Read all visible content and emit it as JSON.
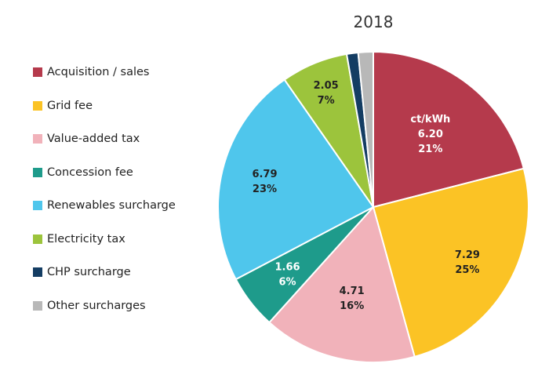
{
  "chart_data": {
    "type": "pie",
    "title": "2018",
    "unit_label": "ct/kWh",
    "legend_position": "left",
    "slices": [
      {
        "name": "Acquisition / sales",
        "value": "6.20",
        "percent": "21%",
        "color": "#b53a4c"
      },
      {
        "name": "Grid fee",
        "value": "7.29",
        "percent": "25%",
        "color": "#fbc325"
      },
      {
        "name": "Value-added tax",
        "value": "4.71",
        "percent": "16%",
        "color": "#f1b2ba"
      },
      {
        "name": "Concession fee",
        "value": "1.66",
        "percent": "6%",
        "color": "#1e9b8b"
      },
      {
        "name": "Renewables surcharge",
        "value": "6.79",
        "percent": "23%",
        "color": "#4fc6ec"
      },
      {
        "name": "Electricity tax",
        "value": "2.05",
        "percent": "7%",
        "color": "#9cc43c"
      },
      {
        "name": "CHP surcharge",
        "value": "0.35",
        "percent": "",
        "color": "#143d63"
      },
      {
        "name": "Other surcharges",
        "value": "0.46",
        "percent": "",
        "color": "#b8b8b8"
      }
    ]
  }
}
